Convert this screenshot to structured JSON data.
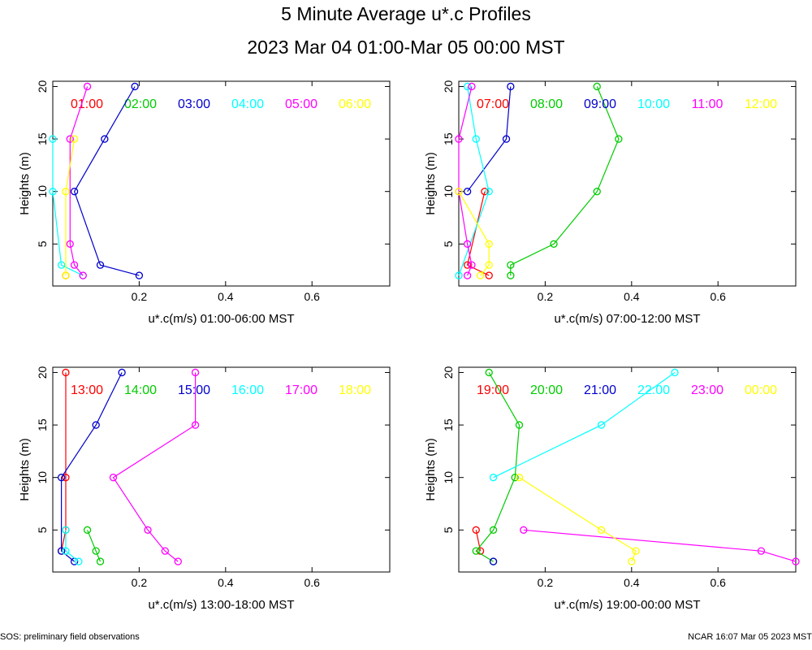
{
  "title": "5 Minute Average u*.c Profiles",
  "subtitle": "2023 Mar 04 01:00-Mar 05 00:00 MST",
  "footer": {
    "left": "SOS: preliminary field observations",
    "right": "NCAR 16:07 Mar 05 2023 MST"
  },
  "colors": [
    "#ff0000",
    "#00cc00",
    "#0000cc",
    "#00ffff",
    "#ff00ff",
    "#ffff00"
  ],
  "chart_data": [
    {
      "type": "line",
      "xlabel": "u*.c(m/s) 01:00-06:00 MST",
      "ylabel": "Heights (m)",
      "xlim": [
        0,
        0.78
      ],
      "ylim": [
        1,
        20.5
      ],
      "xticks": [
        "0.2",
        "0.4",
        "0.6"
      ],
      "yticks": [
        "5",
        "10",
        "15",
        "20"
      ],
      "series": [
        {
          "name": "01:00",
          "points": [
            [
              0.03,
              2
            ]
          ]
        },
        {
          "name": "02:00",
          "points": []
        },
        {
          "name": "03:00",
          "points": [
            [
              0.2,
              2
            ],
            [
              0.11,
              3
            ],
            [
              0.05,
              10
            ],
            [
              0.12,
              15
            ],
            [
              0.19,
              20
            ]
          ]
        },
        {
          "name": "04:00",
          "points": [
            [
              0.07,
              2
            ],
            [
              0.02,
              3
            ],
            [
              0.0,
              10
            ],
            [
              0.0,
              15
            ]
          ]
        },
        {
          "name": "05:00",
          "points": [
            [
              0.07,
              2
            ],
            [
              0.05,
              3
            ],
            [
              0.04,
              5
            ],
            [
              0.04,
              15
            ],
            [
              0.08,
              20
            ]
          ]
        },
        {
          "name": "06:00",
          "points": [
            [
              0.03,
              2
            ],
            [
              0.03,
              10
            ],
            [
              0.05,
              15
            ]
          ]
        }
      ]
    },
    {
      "type": "line",
      "xlabel": "u*.c(m/s) 07:00-12:00 MST",
      "ylabel": "Heights (m)",
      "xlim": [
        0,
        0.78
      ],
      "ylim": [
        1,
        20.5
      ],
      "xticks": [
        "0.2",
        "0.4",
        "0.6"
      ],
      "yticks": [
        "5",
        "10",
        "15",
        "20"
      ],
      "series": [
        {
          "name": "07:00",
          "points": [
            [
              0.07,
              2
            ],
            [
              0.02,
              3
            ],
            [
              0.06,
              10
            ]
          ]
        },
        {
          "name": "08:00",
          "points": [
            [
              0.12,
              2
            ],
            [
              0.12,
              3
            ],
            [
              0.22,
              5
            ],
            [
              0.32,
              10
            ],
            [
              0.37,
              15
            ],
            [
              0.32,
              20
            ]
          ]
        },
        {
          "name": "09:00",
          "points": [
            [
              0.02,
              10
            ],
            [
              0.11,
              15
            ],
            [
              0.12,
              20
            ]
          ]
        },
        {
          "name": "10:00",
          "points": [
            [
              0.0,
              2
            ],
            [
              0.07,
              10
            ],
            [
              0.04,
              15
            ],
            [
              0.02,
              20
            ]
          ]
        },
        {
          "name": "11:00",
          "points": [
            [
              0.02,
              2
            ],
            [
              0.03,
              3
            ],
            [
              0.02,
              5
            ],
            [
              0.0,
              10
            ],
            [
              0.0,
              15
            ],
            [
              0.03,
              20
            ]
          ]
        },
        {
          "name": "12:00",
          "points": [
            [
              0.05,
              2
            ],
            [
              0.07,
              3
            ],
            [
              0.07,
              5
            ],
            [
              0.0,
              10
            ]
          ]
        }
      ]
    },
    {
      "type": "line",
      "xlabel": "u*.c(m/s) 13:00-18:00 MST",
      "ylabel": "Heights (m)",
      "xlim": [
        0,
        0.78
      ],
      "ylim": [
        1,
        20.5
      ],
      "xticks": [
        "0.2",
        "0.4",
        "0.6"
      ],
      "yticks": [
        "5",
        "10",
        "15",
        "20"
      ],
      "series": [
        {
          "name": "13:00",
          "points": [
            [
              0.02,
              3
            ],
            [
              0.03,
              5
            ],
            [
              0.03,
              10
            ],
            [
              0.03,
              20
            ]
          ]
        },
        {
          "name": "14:00",
          "points": [
            [
              0.11,
              2
            ],
            [
              0.1,
              3
            ],
            [
              0.08,
              5
            ]
          ]
        },
        {
          "name": "15:00",
          "points": [
            [
              0.05,
              2
            ],
            [
              0.02,
              3
            ],
            [
              0.02,
              10
            ],
            [
              0.1,
              15
            ],
            [
              0.16,
              20
            ]
          ]
        },
        {
          "name": "16:00",
          "points": [
            [
              0.06,
              2
            ],
            [
              0.03,
              3
            ],
            [
              0.03,
              5
            ]
          ]
        },
        {
          "name": "17:00",
          "points": [
            [
              0.29,
              2
            ],
            [
              0.26,
              3
            ],
            [
              0.22,
              5
            ],
            [
              0.14,
              10
            ],
            [
              0.33,
              15
            ],
            [
              0.33,
              20
            ]
          ]
        },
        {
          "name": "18:00",
          "points": []
        }
      ]
    },
    {
      "type": "line",
      "xlabel": "u*.c(m/s) 19:00-00:00 MST",
      "ylabel": "Heights (m)",
      "xlim": [
        0,
        0.78
      ],
      "ylim": [
        1,
        20.5
      ],
      "xticks": [
        "0.2",
        "0.4",
        "0.6"
      ],
      "yticks": [
        "5",
        "10",
        "15",
        "20"
      ],
      "series": [
        {
          "name": "19:00",
          "points": [
            [
              0.05,
              3
            ],
            [
              0.04,
              5
            ]
          ]
        },
        {
          "name": "20:00",
          "points": [
            [
              0.08,
              2
            ],
            [
              0.04,
              3
            ],
            [
              0.08,
              5
            ],
            [
              0.13,
              10
            ],
            [
              0.14,
              15
            ],
            [
              0.07,
              20
            ]
          ]
        },
        {
          "name": "21:00",
          "points": [
            [
              0.08,
              2
            ]
          ]
        },
        {
          "name": "22:00",
          "points": [
            [
              0.08,
              10
            ],
            [
              0.33,
              15
            ],
            [
              0.5,
              20
            ]
          ]
        },
        {
          "name": "23:00",
          "points": [
            [
              0.78,
              2
            ],
            [
              0.7,
              3
            ],
            [
              0.15,
              5
            ]
          ]
        },
        {
          "name": "00:00",
          "points": [
            [
              0.4,
              2
            ],
            [
              0.41,
              3
            ],
            [
              0.33,
              5
            ],
            [
              0.14,
              10
            ]
          ]
        }
      ]
    }
  ]
}
